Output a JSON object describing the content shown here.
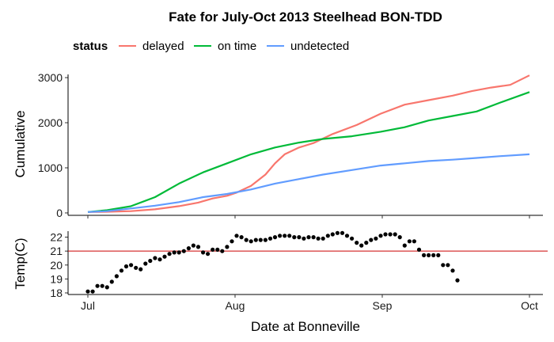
{
  "chart_data": [
    {
      "type": "line",
      "title": "Fate for July-Oct 2013 Steelhead BON-TDD",
      "xlabel": "",
      "ylabel": "Cumulative",
      "legend": {
        "title": "status",
        "position": "top-left"
      },
      "grid": false,
      "x_ticks": [
        "Jul",
        "Aug",
        "Sep",
        "Oct"
      ],
      "y_ticks": [
        0,
        1000,
        2000,
        3000
      ],
      "xlim": [
        "2013-07-01",
        "2013-10-01"
      ],
      "ylim": [
        -150,
        3150
      ],
      "series": [
        {
          "name": "delayed",
          "color": "#F8766D",
          "points": [
            [
              "2013-07-01",
              20
            ],
            [
              "2013-07-05",
              25
            ],
            [
              "2013-07-10",
              40
            ],
            [
              "2013-07-15",
              80
            ],
            [
              "2013-07-20",
              150
            ],
            [
              "2013-07-24",
              230
            ],
            [
              "2013-07-27",
              320
            ],
            [
              "2013-07-30",
              380
            ],
            [
              "2013-08-01",
              450
            ],
            [
              "2013-08-04",
              600
            ],
            [
              "2013-08-07",
              850
            ],
            [
              "2013-08-09",
              1100
            ],
            [
              "2013-08-11",
              1300
            ],
            [
              "2013-08-14",
              1450
            ],
            [
              "2013-08-17",
              1550
            ],
            [
              "2013-08-21",
              1750
            ],
            [
              "2013-08-26",
              1950
            ],
            [
              "2013-08-31",
              2200
            ],
            [
              "2013-09-05",
              2400
            ],
            [
              "2013-09-10",
              2500
            ],
            [
              "2013-09-15",
              2600
            ],
            [
              "2013-09-19",
              2700
            ],
            [
              "2013-09-23",
              2780
            ],
            [
              "2013-09-27",
              2840
            ],
            [
              "2013-10-01",
              3050
            ]
          ]
        },
        {
          "name": "on time",
          "color": "#00BA38",
          "points": [
            [
              "2013-07-01",
              20
            ],
            [
              "2013-07-05",
              60
            ],
            [
              "2013-07-10",
              150
            ],
            [
              "2013-07-15",
              350
            ],
            [
              "2013-07-20",
              650
            ],
            [
              "2013-07-25",
              900
            ],
            [
              "2013-07-30",
              1100
            ],
            [
              "2013-08-04",
              1300
            ],
            [
              "2013-08-09",
              1450
            ],
            [
              "2013-08-14",
              1560
            ],
            [
              "2013-08-19",
              1640
            ],
            [
              "2013-08-25",
              1700
            ],
            [
              "2013-08-31",
              1800
            ],
            [
              "2013-09-05",
              1900
            ],
            [
              "2013-09-10",
              2050
            ],
            [
              "2013-09-15",
              2150
            ],
            [
              "2013-09-20",
              2250
            ],
            [
              "2013-09-25",
              2450
            ],
            [
              "2013-10-01",
              2680
            ]
          ]
        },
        {
          "name": "undetected",
          "color": "#619CFF",
          "points": [
            [
              "2013-07-01",
              20
            ],
            [
              "2013-07-05",
              40
            ],
            [
              "2013-07-10",
              100
            ],
            [
              "2013-07-15",
              160
            ],
            [
              "2013-07-20",
              240
            ],
            [
              "2013-07-25",
              350
            ],
            [
              "2013-07-30",
              420
            ],
            [
              "2013-08-04",
              520
            ],
            [
              "2013-08-09",
              650
            ],
            [
              "2013-08-14",
              750
            ],
            [
              "2013-08-19",
              850
            ],
            [
              "2013-08-25",
              950
            ],
            [
              "2013-08-31",
              1050
            ],
            [
              "2013-09-05",
              1100
            ],
            [
              "2013-09-10",
              1150
            ],
            [
              "2013-09-15",
              1180
            ],
            [
              "2013-09-20",
              1220
            ],
            [
              "2013-09-25",
              1260
            ],
            [
              "2013-10-01",
              1300
            ]
          ]
        }
      ]
    },
    {
      "type": "scatter",
      "title": "",
      "xlabel": "Date at Bonneville",
      "ylabel": "Temp(C)",
      "grid": false,
      "x_ticks": [
        "Jul",
        "Aug",
        "Sep",
        "Oct"
      ],
      "y_ticks": [
        18,
        19,
        20,
        21,
        22
      ],
      "xlim": [
        "2013-07-01",
        "2013-10-01"
      ],
      "ylim": [
        17.8,
        22.6
      ],
      "reference_line": {
        "y": 21,
        "color": "#cc0000"
      },
      "point_color": "#000000",
      "series": [
        {
          "points": [
            [
              "2013-07-01",
              18.1
            ],
            [
              "2013-07-02",
              18.1
            ],
            [
              "2013-07-03",
              18.5
            ],
            [
              "2013-07-04",
              18.5
            ],
            [
              "2013-07-05",
              18.4
            ],
            [
              "2013-07-06",
              18.8
            ],
            [
              "2013-07-07",
              19.2
            ],
            [
              "2013-07-08",
              19.6
            ],
            [
              "2013-07-09",
              19.9
            ],
            [
              "2013-07-10",
              20.0
            ],
            [
              "2013-07-11",
              19.8
            ],
            [
              "2013-07-12",
              19.7
            ],
            [
              "2013-07-13",
              20.1
            ],
            [
              "2013-07-14",
              20.3
            ],
            [
              "2013-07-15",
              20.5
            ],
            [
              "2013-07-16",
              20.4
            ],
            [
              "2013-07-17",
              20.6
            ],
            [
              "2013-07-18",
              20.8
            ],
            [
              "2013-07-19",
              20.9
            ],
            [
              "2013-07-20",
              20.9
            ],
            [
              "2013-07-21",
              21.0
            ],
            [
              "2013-07-22",
              21.2
            ],
            [
              "2013-07-23",
              21.4
            ],
            [
              "2013-07-24",
              21.3
            ],
            [
              "2013-07-25",
              20.9
            ],
            [
              "2013-07-26",
              20.8
            ],
            [
              "2013-07-27",
              21.1
            ],
            [
              "2013-07-28",
              21.1
            ],
            [
              "2013-07-29",
              21.0
            ],
            [
              "2013-07-30",
              21.3
            ],
            [
              "2013-07-31",
              21.7
            ],
            [
              "2013-08-01",
              22.1
            ],
            [
              "2013-08-02",
              22.0
            ],
            [
              "2013-08-03",
              21.8
            ],
            [
              "2013-08-04",
              21.7
            ],
            [
              "2013-08-05",
              21.8
            ],
            [
              "2013-08-06",
              21.8
            ],
            [
              "2013-08-07",
              21.8
            ],
            [
              "2013-08-08",
              21.9
            ],
            [
              "2013-08-09",
              22.0
            ],
            [
              "2013-08-10",
              22.1
            ],
            [
              "2013-08-11",
              22.1
            ],
            [
              "2013-08-12",
              22.1
            ],
            [
              "2013-08-13",
              22.0
            ],
            [
              "2013-08-14",
              22.0
            ],
            [
              "2013-08-15",
              21.9
            ],
            [
              "2013-08-16",
              22.0
            ],
            [
              "2013-08-17",
              22.0
            ],
            [
              "2013-08-18",
              21.9
            ],
            [
              "2013-08-19",
              21.9
            ],
            [
              "2013-08-20",
              22.1
            ],
            [
              "2013-08-21",
              22.2
            ],
            [
              "2013-08-22",
              22.3
            ],
            [
              "2013-08-23",
              22.3
            ],
            [
              "2013-08-24",
              22.1
            ],
            [
              "2013-08-25",
              21.9
            ],
            [
              "2013-08-26",
              21.6
            ],
            [
              "2013-08-27",
              21.4
            ],
            [
              "2013-08-28",
              21.6
            ],
            [
              "2013-08-29",
              21.8
            ],
            [
              "2013-08-30",
              21.9
            ],
            [
              "2013-08-31",
              22.1
            ],
            [
              "2013-09-01",
              22.2
            ],
            [
              "2013-09-02",
              22.2
            ],
            [
              "2013-09-03",
              22.2
            ],
            [
              "2013-09-04",
              22.0
            ],
            [
              "2013-09-05",
              21.4
            ],
            [
              "2013-09-06",
              21.7
            ],
            [
              "2013-09-07",
              21.7
            ],
            [
              "2013-09-08",
              21.1
            ],
            [
              "2013-09-09",
              20.7
            ],
            [
              "2013-09-10",
              20.7
            ],
            [
              "2013-09-11",
              20.7
            ],
            [
              "2013-09-12",
              20.7
            ],
            [
              "2013-09-13",
              20.0
            ],
            [
              "2013-09-14",
              20.0
            ],
            [
              "2013-09-15",
              19.6
            ],
            [
              "2013-09-16",
              18.9
            ]
          ]
        }
      ]
    }
  ]
}
